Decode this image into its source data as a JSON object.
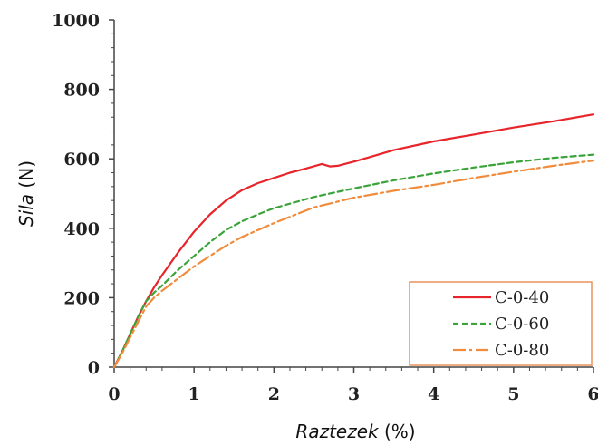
{
  "chart_data": {
    "type": "line",
    "xlabel_italic": "Raztezek",
    "xlabel_unit": " (%)",
    "ylabel_italic": "Sila",
    "ylabel_unit": " (N)",
    "xlim": [
      0,
      6
    ],
    "ylim": [
      0,
      1000
    ],
    "xticks": [
      0,
      1,
      2,
      3,
      4,
      5,
      6
    ],
    "yticks": [
      0,
      200,
      400,
      600,
      800,
      1000
    ],
    "grid": false,
    "legend_position": "bottom-right",
    "legend_border_color": "#e8925a",
    "series": [
      {
        "name": "C-0-40",
        "color": "#e8242b",
        "dash": "solid",
        "x": [
          0,
          0.1,
          0.2,
          0.3,
          0.4,
          0.5,
          0.6,
          0.8,
          1.0,
          1.2,
          1.4,
          1.6,
          1.8,
          2.0,
          2.2,
          2.4,
          2.6,
          2.7,
          2.8,
          3.0,
          3.2,
          3.5,
          4.0,
          4.5,
          5.0,
          5.5,
          6.0
        ],
        "y": [
          0,
          45,
          95,
          145,
          190,
          230,
          265,
          330,
          390,
          440,
          480,
          510,
          530,
          545,
          560,
          572,
          585,
          578,
          580,
          592,
          605,
          625,
          650,
          670,
          690,
          708,
          728
        ]
      },
      {
        "name": "C-0-60",
        "color": "#3aa33a",
        "dash": "6,4",
        "x": [
          0,
          0.1,
          0.2,
          0.3,
          0.4,
          0.5,
          0.6,
          0.8,
          1.0,
          1.2,
          1.4,
          1.6,
          1.8,
          2.0,
          2.5,
          3.0,
          3.5,
          4.0,
          4.5,
          5.0,
          5.5,
          6.0
        ],
        "y": [
          0,
          45,
          95,
          145,
          190,
          215,
          235,
          280,
          320,
          360,
          395,
          420,
          440,
          458,
          490,
          515,
          538,
          558,
          575,
          590,
          603,
          612
        ]
      },
      {
        "name": "C-0-80",
        "color": "#f08c3c",
        "dash": "14,4,3,4",
        "x": [
          0,
          0.1,
          0.2,
          0.3,
          0.4,
          0.5,
          0.6,
          0.8,
          1.0,
          1.2,
          1.4,
          1.6,
          1.8,
          2.0,
          2.5,
          3.0,
          3.5,
          4.0,
          4.5,
          5.0,
          5.5,
          6.0
        ],
        "y": [
          0,
          40,
          85,
          130,
          175,
          200,
          220,
          255,
          290,
          320,
          350,
          375,
          395,
          415,
          460,
          488,
          508,
          525,
          545,
          563,
          580,
          595
        ]
      }
    ]
  }
}
